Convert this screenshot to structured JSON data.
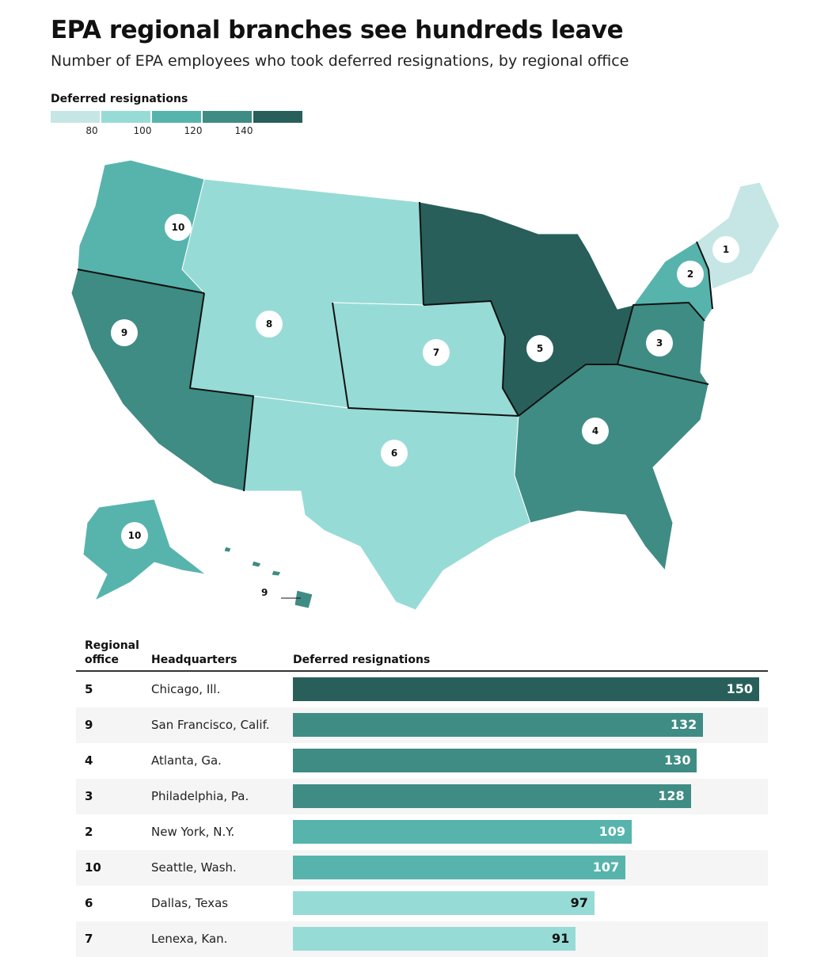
{
  "title": "EPA regional branches see hundreds leave",
  "subtitle": "Number of EPA employees who took deferred resignations, by regional office",
  "legend": {
    "title": "Deferred resignations",
    "ticks": [
      "80",
      "100",
      "120",
      "140"
    ],
    "colors": [
      "#c5e6e4",
      "#97dbd6",
      "#57b4ad",
      "#3f8c84",
      "#285f5a"
    ]
  },
  "map": {
    "region_labels": [
      "10",
      "9",
      "8",
      "7",
      "6",
      "5",
      "4",
      "3",
      "2",
      "1",
      "10",
      "9"
    ]
  },
  "table": {
    "headers": {
      "office": "Regional office",
      "hq": "Headquarters",
      "value": "Deferred resignations"
    }
  },
  "chart_data": {
    "type": "bar",
    "title": "EPA regional branches see hundreds leave",
    "subtitle": "Number of EPA employees who took deferred resignations, by regional office",
    "xlabel": "Deferred resignations",
    "ylabel": "Regional office",
    "xlim": [
      0,
      150
    ],
    "rows": [
      {
        "office": "5",
        "hq": "Chicago, Ill.",
        "value": 150,
        "color": "#285f5a",
        "label_color": "#ffffff"
      },
      {
        "office": "9",
        "hq": "San Francisco, Calif.",
        "value": 132,
        "color": "#3f8c84",
        "label_color": "#ffffff"
      },
      {
        "office": "4",
        "hq": "Atlanta, Ga.",
        "value": 130,
        "color": "#3f8c84",
        "label_color": "#ffffff"
      },
      {
        "office": "3",
        "hq": "Philadelphia, Pa.",
        "value": 128,
        "color": "#3f8c84",
        "label_color": "#ffffff"
      },
      {
        "office": "2",
        "hq": "New York, N.Y.",
        "value": 109,
        "color": "#57b4ad",
        "label_color": "#ffffff"
      },
      {
        "office": "10",
        "hq": "Seattle, Wash.",
        "value": 107,
        "color": "#57b4ad",
        "label_color": "#ffffff"
      },
      {
        "office": "6",
        "hq": "Dallas, Texas",
        "value": 97,
        "color": "#97dbd6",
        "label_color": "#111111"
      },
      {
        "office": "7",
        "hq": "Lenexa, Kan.",
        "value": 91,
        "color": "#97dbd6",
        "label_color": "#111111"
      }
    ]
  }
}
